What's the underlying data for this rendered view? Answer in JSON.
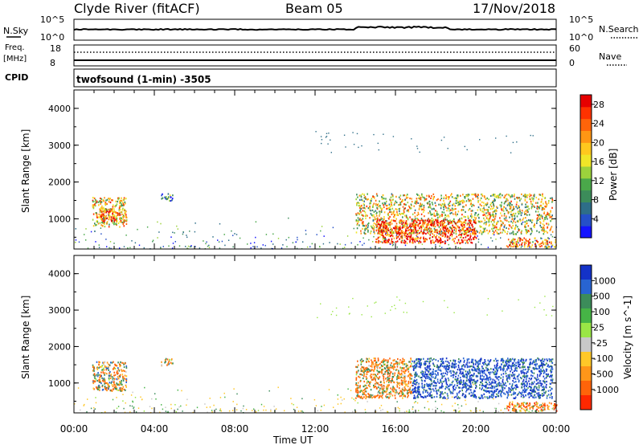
{
  "header": {
    "station": "Clyde River (fitACF)",
    "beam": "Beam 05",
    "date": "17/Nov/2018"
  },
  "status": {
    "nsky_label": "N.Sky",
    "nsky_top": "10^5",
    "nsky_bottom": "10^0",
    "nsearch_label": "N.Search",
    "nsearch_top": "10^5",
    "nsearch_bottom": "10^0",
    "freq_label": "Freq.",
    "freq_unit": "[MHz]",
    "freq_top": "18",
    "freq_bottom": "8",
    "nave_label": "Nave",
    "nave_top": "60",
    "nave_bottom": "0",
    "cpid_label": "CPID",
    "cpid_value": "twofsound (1-min) -3505"
  },
  "xaxis": {
    "label": "Time UT",
    "ticks": [
      "00:00",
      "04:00",
      "08:00",
      "12:00",
      "16:00",
      "20:00",
      "00:00"
    ]
  },
  "chart_data": [
    {
      "type": "heatmap",
      "name": "power",
      "xlabel": "Time UT",
      "ylabel": "Slant Range [km]",
      "x_range_hours": [
        0,
        24
      ],
      "ylim": [
        180,
        4500
      ],
      "yticks": [
        "1000",
        "2000",
        "3000",
        "4000"
      ],
      "colorbar": {
        "label": "Power [dB]",
        "ticks": [
          "4",
          "8",
          "12",
          "16",
          "20",
          "24",
          "28"
        ],
        "range": [
          0,
          30
        ],
        "colors": [
          "#1414ff",
          "#2550c8",
          "#2e6e88",
          "#3c8c5a",
          "#4aa84a",
          "#9cd23c",
          "#f0e628",
          "#ffc81e",
          "#ff9614",
          "#ff640a",
          "#ff3200",
          "#e60000"
        ]
      },
      "regions": [
        {
          "t": [
            0.9,
            2.6
          ],
          "r": [
            800,
            1600
          ],
          "value_mean": 18
        },
        {
          "t": [
            1.3,
            2.0
          ],
          "r": [
            950,
            1300
          ],
          "value_mean": 26
        },
        {
          "t": [
            4.3,
            4.9
          ],
          "r": [
            1500,
            1700
          ],
          "value_mean": 6
        },
        {
          "t": [
            14.0,
            23.8
          ],
          "r": [
            600,
            1700
          ],
          "value_mean": 16
        },
        {
          "t": [
            15.0,
            20.0
          ],
          "r": [
            350,
            1000
          ],
          "value_mean": 27
        },
        {
          "t": [
            21.5,
            24.0
          ],
          "r": [
            250,
            500
          ],
          "value_mean": 22
        }
      ]
    },
    {
      "type": "heatmap",
      "name": "velocity",
      "xlabel": "Time UT",
      "ylabel": "Slant Range [km]",
      "x_range_hours": [
        0,
        24
      ],
      "ylim": [
        180,
        4500
      ],
      "yticks": [
        "1000",
        "2000",
        "3000",
        "4000"
      ],
      "colorbar": {
        "label": "Velocity [m s^-1]",
        "ticks": [
          "1000",
          "500",
          "100",
          "25",
          "-25",
          "-100",
          "-500",
          "-1000"
        ],
        "colors": [
          "#1432c8",
          "#2864d2",
          "#3c8c5a",
          "#46b446",
          "#9ae646",
          "#c8c8c8",
          "#ffc828",
          "#ff9619",
          "#ff640a",
          "#ff2800"
        ]
      },
      "regions": [
        {
          "t": [
            0.9,
            2.6
          ],
          "r": [
            800,
            1600
          ],
          "value_mean": -80
        },
        {
          "t": [
            4.3,
            4.9
          ],
          "r": [
            1500,
            1700
          ],
          "value_mean": -120
        },
        {
          "t": [
            14.0,
            16.8
          ],
          "r": [
            600,
            1700
          ],
          "value_mean": -200
        },
        {
          "t": [
            16.8,
            23.8
          ],
          "r": [
            600,
            1700
          ],
          "value_mean": 600
        },
        {
          "t": [
            21.5,
            24.0
          ],
          "r": [
            250,
            500
          ],
          "value_mean": -400
        }
      ]
    }
  ]
}
